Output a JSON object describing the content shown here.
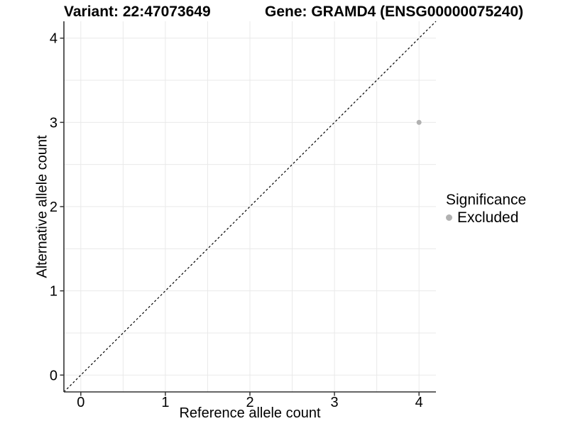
{
  "header": {
    "variant_title": "Variant: 22:47073649",
    "gene_title": "Gene: GRAMD4 (ENSG00000075240)"
  },
  "axes": {
    "x": {
      "label": "Reference allele count"
    },
    "y": {
      "label": "Alternative allele count"
    }
  },
  "legend": {
    "title": "Significance",
    "items": [
      {
        "label": "Excluded",
        "color": "#b1b1b1",
        "marker": "circle"
      }
    ]
  },
  "colors": {
    "background": "#ffffff",
    "gridline": "#e9e9e9",
    "axis_line": "#333333",
    "reference_line": "#000000",
    "point": "#b1b1b1",
    "text": "#000000"
  },
  "chart_data": {
    "type": "scatter",
    "title": "Variant: 22:47073649    Gene: GRAMD4 (ENSG00000075240)",
    "xlabel": "Reference allele count",
    "ylabel": "Alternative allele count",
    "xlim": [
      -0.2,
      4.2
    ],
    "ylim": [
      -0.2,
      4.2
    ],
    "x_ticks": [
      0,
      1,
      2,
      3,
      4
    ],
    "y_ticks": [
      0,
      1,
      2,
      3,
      4
    ],
    "grid": {
      "major": true,
      "minor": true,
      "color": "#e9e9e9"
    },
    "reference_line": {
      "type": "identity",
      "slope": 1,
      "intercept": 0,
      "style": "dashed",
      "color": "#000000"
    },
    "series": [
      {
        "name": "Excluded",
        "color": "#b1b1b1",
        "marker": "circle",
        "points": [
          {
            "x": 4,
            "y": 3
          }
        ]
      }
    ],
    "legend_position": "right",
    "legend_title": "Significance"
  }
}
